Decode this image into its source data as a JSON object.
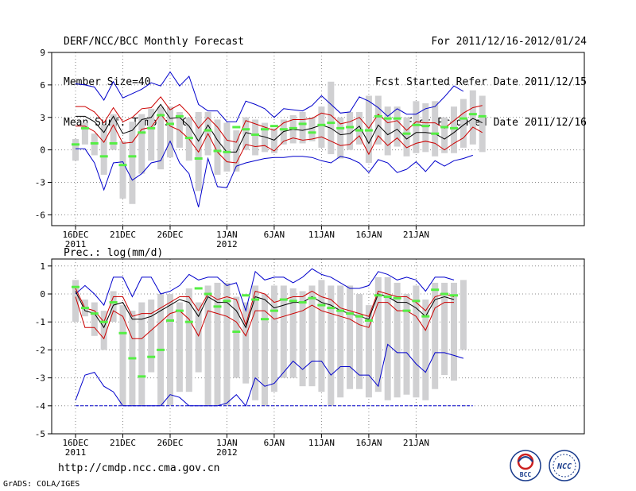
{
  "header": {
    "title": "DERF/NCC/BCC Monthly Forecast",
    "member_size": "Member Size=40",
    "variable": "Mean Surf. Temp.: °C",
    "period": "For 2011/12/16-2012/01/24",
    "started": "Fcst Started Refer Date 2011/12/15",
    "produced": "Fcst Produced Date 2011/12/16"
  },
  "footer": {
    "url": "http://cmdp.ncc.cma.gov.cn",
    "grads": "GrADS: COLA/IGES",
    "logo_left_text": "BCC",
    "logo_right_text": "NCC"
  },
  "colors": {
    "grid": "#888888",
    "box": "#d0d0d2",
    "median": "#55ee44",
    "mean": "#000000",
    "inner": "#cc0000",
    "outer": "#0000cc",
    "floor": "#0000cc"
  },
  "chart_data": [
    {
      "type": "line",
      "title": "Mean Surf. Temp.: °C",
      "ylim": [
        -7,
        9
      ],
      "yticks": [
        -6,
        -3,
        0,
        3,
        6,
        9
      ],
      "ytick_labels": [
        "-6",
        "-3",
        "0",
        "3",
        "6",
        "9"
      ],
      "xtick_labels": [
        "16DEC",
        "21DEC",
        "26DEC",
        "1JAN",
        "6JAN",
        "11JAN",
        "16JAN",
        "21JAN"
      ],
      "xtick_days": [
        0,
        5,
        10,
        16,
        21,
        26,
        31,
        36
      ],
      "year_labels": [
        {
          "day": 0,
          "label": "2011"
        },
        {
          "day": 16,
          "label": "2012"
        }
      ],
      "grid": true,
      "days": 40,
      "series": [
        {
          "name": "max",
          "values": [
            6.1,
            6.0,
            5.8,
            4.6,
            6.3,
            4.8,
            5.2,
            5.6,
            6.2,
            5.9,
            7.2,
            5.9,
            6.8,
            4.2,
            3.6,
            3.6,
            2.6,
            2.6,
            4.5,
            4.2,
            3.8,
            3.0,
            3.8,
            3.7,
            3.6,
            4.1,
            5.0,
            4.2,
            3.4,
            3.5,
            4.9,
            4.5,
            3.9,
            3.1,
            3.8,
            3.3,
            3.3,
            3.8,
            4.0,
            4.9,
            5.9,
            5.4
          ]
        },
        {
          "name": "p75",
          "values": [
            4.0,
            4.0,
            3.5,
            2.5,
            3.9,
            2.6,
            3.0,
            3.8,
            3.9,
            4.9,
            3.7,
            4.2,
            3.3,
            2.0,
            3.0,
            2.1,
            0.9,
            0.7,
            2.7,
            2.4,
            2.1,
            1.8,
            2.5,
            2.8,
            2.8,
            2.9,
            3.4,
            3.2,
            2.4,
            2.6,
            3.0,
            2.0,
            3.3,
            2.5,
            2.7,
            1.8,
            2.6,
            2.5,
            2.5,
            2.0,
            2.7,
            3.4,
            3.9,
            4.1
          ]
        },
        {
          "name": "mean",
          "values": [
            3.1,
            3.1,
            2.6,
            1.6,
            3.1,
            1.5,
            1.8,
            2.8,
            3.0,
            4.2,
            2.9,
            3.0,
            2.2,
            0.8,
            2.3,
            0.9,
            -0.2,
            -0.2,
            1.6,
            1.4,
            1.2,
            0.9,
            1.7,
            1.9,
            1.8,
            2.0,
            2.3,
            2.0,
            1.4,
            1.5,
            2.2,
            0.6,
            2.3,
            1.4,
            1.9,
            1.0,
            1.6,
            1.6,
            1.5,
            1.0,
            1.6,
            2.3,
            2.9,
            2.5
          ]
        },
        {
          "name": "p25",
          "values": [
            2.2,
            2.2,
            1.7,
            0.7,
            2.3,
            0.6,
            0.7,
            1.9,
            2.1,
            3.3,
            2.2,
            1.8,
            1.0,
            -0.2,
            1.5,
            -0.2,
            -1.1,
            -1.2,
            0.5,
            0.3,
            0.4,
            -0.1,
            0.8,
            1.1,
            0.9,
            1.0,
            1.2,
            0.8,
            0.4,
            0.5,
            1.3,
            -0.4,
            1.3,
            0.4,
            1.1,
            0.2,
            0.6,
            0.8,
            0.6,
            0.0,
            0.6,
            1.1,
            2.1,
            1.6
          ]
        },
        {
          "name": "min",
          "values": [
            0.1,
            0.1,
            -1.2,
            -3.7,
            -1.2,
            -1.1,
            -2.8,
            -2.2,
            -1.2,
            -1.0,
            0.8,
            -1.2,
            -2.2,
            -5.3,
            -0.8,
            -3.4,
            -3.5,
            -1.5,
            -1.2,
            -1.0,
            -0.8,
            -0.7,
            -0.7,
            -0.6,
            -0.6,
            -0.7,
            -1.0,
            -1.2,
            -0.6,
            -0.8,
            -1.2,
            -2.1,
            -0.9,
            -1.2,
            -2.1,
            -1.8,
            -1.1,
            -2.0,
            -1.0,
            -1.5,
            -1.0,
            -0.8,
            -0.5
          ]
        },
        {
          "name": "box_top",
          "values": [
            1.0,
            2.5,
            1.5,
            2.3,
            3.3,
            0.8,
            2.6,
            3.3,
            3.8,
            4.0,
            4.0,
            3.5,
            3.0,
            3.5,
            3.5,
            2.8,
            2.5,
            1.8,
            3.0,
            2.8,
            2.5,
            2.0,
            2.8,
            3.2,
            3.5,
            3.0,
            4.0,
            6.3,
            3.0,
            3.5,
            3.5,
            5.0,
            5.0,
            4.0,
            4.0,
            3.0,
            4.5,
            4.3,
            4.5,
            3.0,
            4.0,
            4.7,
            5.5,
            5.0
          ]
        },
        {
          "name": "box_bottom",
          "values": [
            -1.0,
            0.5,
            -0.5,
            -2.3,
            0.0,
            -4.5,
            -5.0,
            -2.2,
            -1.0,
            -1.8,
            -0.7,
            0.2,
            -1.0,
            -3.8,
            -0.5,
            -2.3,
            -2.0,
            -2.0,
            0.0,
            -0.5,
            -0.2,
            -0.3,
            0.5,
            0.6,
            0.6,
            0.8,
            0.2,
            -0.4,
            -0.8,
            0.0,
            0.5,
            -1.2,
            0.5,
            -0.5,
            0.3,
            -0.6,
            -0.3,
            -0.2,
            -0.6,
            -0.3,
            -0.3,
            0.2,
            0.5,
            -0.2
          ]
        },
        {
          "name": "median",
          "values": [
            0.5,
            2.0,
            0.6,
            -0.6,
            0.6,
            -1.4,
            -0.6,
            1.6,
            2.0,
            3.2,
            2.4,
            3.1,
            1.1,
            -0.8,
            1.8,
            -0.1,
            -0.2,
            2.1,
            1.9,
            1.4,
            1.9,
            2.2,
            1.9,
            2.0,
            2.4,
            1.6,
            2.3,
            2.5,
            2.0,
            2.1,
            1.8,
            1.8,
            3.1,
            2.9,
            2.9,
            1.5,
            2.3,
            2.2,
            1.5,
            2.1,
            2.0,
            2.9,
            3.3,
            3.1
          ]
        }
      ]
    },
    {
      "type": "line",
      "title": "Prec.: log(mm/d)",
      "ylim": [
        -5,
        1.25
      ],
      "yticks": [
        -5,
        -4,
        -3,
        -2,
        -1,
        0,
        1
      ],
      "ytick_labels": [
        "-5",
        "-4",
        "-3",
        "-2",
        "-1",
        "0",
        "1"
      ],
      "xtick_labels": [
        "16DEC",
        "21DEC",
        "26DEC",
        "1JAN",
        "6JAN",
        "11JAN",
        "16JAN",
        "21JAN"
      ],
      "xtick_days": [
        0,
        5,
        10,
        16,
        21,
        26,
        31,
        36
      ],
      "year_labels": [
        {
          "day": 0,
          "label": "2011"
        },
        {
          "day": 16,
          "label": "2012"
        }
      ],
      "grid": true,
      "days": 40,
      "floor": -4,
      "series": [
        {
          "name": "max",
          "values": [
            0.0,
            0.3,
            0.0,
            -0.4,
            0.6,
            0.6,
            -0.1,
            0.6,
            0.6,
            0.0,
            0.1,
            0.3,
            0.7,
            0.5,
            0.6,
            0.6,
            0.3,
            0.4,
            -0.6,
            0.8,
            0.5,
            0.6,
            0.6,
            0.4,
            0.6,
            0.9,
            0.7,
            0.6,
            0.4,
            0.2,
            0.2,
            0.3,
            0.8,
            0.7,
            0.5,
            0.6,
            0.5,
            0.1,
            0.6,
            0.6,
            0.5
          ]
        },
        {
          "name": "p75",
          "values": [
            0.2,
            -0.5,
            -0.6,
            -1.0,
            -0.1,
            -0.1,
            -0.8,
            -0.7,
            -0.7,
            -0.5,
            -0.3,
            -0.1,
            -0.1,
            -0.6,
            0.0,
            -0.2,
            -0.1,
            -0.2,
            -1.1,
            0.1,
            0.0,
            -0.3,
            -0.2,
            -0.1,
            -0.1,
            0.1,
            -0.1,
            -0.2,
            -0.5,
            -0.6,
            -0.7,
            -0.8,
            0.1,
            0.0,
            -0.1,
            -0.1,
            -0.3,
            -0.6,
            -0.1,
            0.0,
            -0.1
          ]
        },
        {
          "name": "mean",
          "values": [
            0.1,
            -0.6,
            -0.7,
            -1.2,
            -0.4,
            -0.3,
            -0.9,
            -0.9,
            -0.8,
            -0.6,
            -0.4,
            -0.2,
            -0.3,
            -0.8,
            -0.1,
            -0.3,
            -0.3,
            -0.6,
            -1.2,
            -0.1,
            -0.2,
            -0.5,
            -0.4,
            -0.3,
            -0.3,
            -0.1,
            -0.3,
            -0.4,
            -0.6,
            -0.7,
            -0.8,
            -0.9,
            0.0,
            -0.1,
            -0.3,
            -0.3,
            -0.5,
            -0.8,
            -0.2,
            -0.1,
            -0.2
          ]
        },
        {
          "name": "p25",
          "values": [
            -0.1,
            -1.2,
            -1.2,
            -1.6,
            -0.6,
            -0.8,
            -1.6,
            -1.6,
            -1.3,
            -1.0,
            -0.7,
            -0.6,
            -0.9,
            -1.5,
            -0.6,
            -0.7,
            -0.8,
            -1.0,
            -1.5,
            -0.6,
            -0.6,
            -0.9,
            -0.8,
            -0.7,
            -0.6,
            -0.4,
            -0.6,
            -0.7,
            -0.8,
            -0.9,
            -1.1,
            -1.2,
            -0.3,
            -0.3,
            -0.6,
            -0.6,
            -0.8,
            -1.3,
            -0.5,
            -0.3,
            -0.3
          ]
        },
        {
          "name": "min",
          "values": [
            -3.8,
            -2.9,
            -2.8,
            -3.3,
            -3.5,
            -4.0,
            -4.0,
            -4.0,
            -4.0,
            -4.0,
            -3.6,
            -3.7,
            -4.0,
            -4.0,
            -4.0,
            -4.0,
            -3.9,
            -3.6,
            -4.0,
            -3.0,
            -3.3,
            -3.2,
            -2.8,
            -2.4,
            -2.7,
            -2.4,
            -2.4,
            -2.9,
            -2.6,
            -2.6,
            -2.9,
            -2.9,
            -3.3,
            -1.8,
            -2.1,
            -2.1,
            -2.5,
            -2.8,
            -2.1,
            -2.1,
            -2.2,
            -2.3
          ]
        },
        {
          "name": "box_top",
          "values": [
            0.5,
            -0.2,
            -0.3,
            -0.6,
            0.1,
            -0.4,
            -0.6,
            -0.3,
            -0.2,
            0.0,
            0.0,
            -0.3,
            0.2,
            -0.3,
            0.3,
            0.4,
            0.4,
            -0.1,
            -0.3,
            0.3,
            0.0,
            0.3,
            0.3,
            0.2,
            0.1,
            0.3,
            0.5,
            0.3,
            0.3,
            0.3,
            0.0,
            -0.4,
            0.6,
            0.6,
            0.4,
            0.0,
            0.3,
            -0.2,
            0.4,
            0.4,
            0.4,
            0.5
          ]
        },
        {
          "name": "box_bottom",
          "values": [
            -1.0,
            -0.8,
            -1.5,
            -2.0,
            -1.0,
            -4.0,
            -4.0,
            -4.0,
            -2.8,
            -4.0,
            -4.0,
            -3.5,
            -3.5,
            -2.8,
            -4.0,
            -4.0,
            -4.0,
            -3.0,
            -3.2,
            -3.8,
            -4.0,
            -3.5,
            -3.0,
            -3.0,
            -3.3,
            -3.3,
            -3.5,
            -4.0,
            -3.7,
            -3.4,
            -3.4,
            -3.7,
            -3.5,
            -3.8,
            -3.7,
            -3.6,
            -3.7,
            -3.8,
            -3.4,
            -2.9,
            -3.1,
            -2.0
          ]
        },
        {
          "name": "median",
          "values": [
            0.25,
            -0.5,
            -0.7,
            -1.0,
            -0.3,
            -1.4,
            -2.3,
            -2.95,
            -2.25,
            -2.0,
            -0.95,
            -0.6,
            -1.0,
            0.2,
            0.0,
            -0.45,
            -0.25,
            -1.35,
            -0.05,
            -0.2,
            -0.9,
            -0.6,
            -0.2,
            -0.25,
            -0.3,
            -0.15,
            -0.4,
            -0.5,
            -0.6,
            -0.7,
            -0.8,
            -0.95,
            -0.05,
            -0.1,
            -0.15,
            -0.6,
            -0.25,
            -0.8,
            0.15,
            0.0,
            -0.05
          ]
        }
      ]
    }
  ]
}
